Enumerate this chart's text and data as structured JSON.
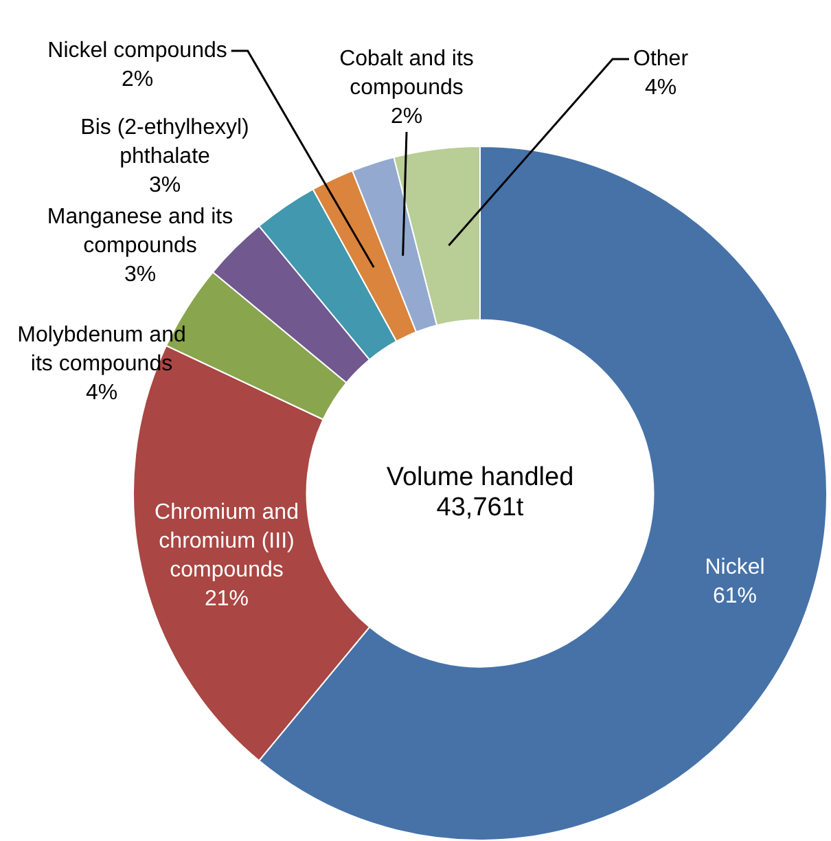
{
  "chart_data": {
    "type": "donut",
    "categories": [
      "Nickel",
      "Chromium and chromium (III) compounds",
      "Molybdenum and its compounds",
      "Manganese and its compounds",
      "Bis (2-ethylhexyl) phthalate",
      "Nickel compounds",
      "Cobalt and its compounds",
      "Other"
    ],
    "values": [
      61,
      21,
      4,
      3,
      3,
      2,
      2,
      4
    ],
    "value_labels": [
      "61%",
      "21%",
      "4%",
      "3%",
      "3%",
      "2%",
      "2%",
      "4%"
    ],
    "colors": [
      "#4672a8",
      "#aa4643",
      "#89a54e",
      "#71588f",
      "#4198af",
      "#db843d",
      "#93a9cf",
      "#b9cd96"
    ],
    "annotations": [
      "Volume handled",
      "43,761t"
    ],
    "legend": false
  }
}
